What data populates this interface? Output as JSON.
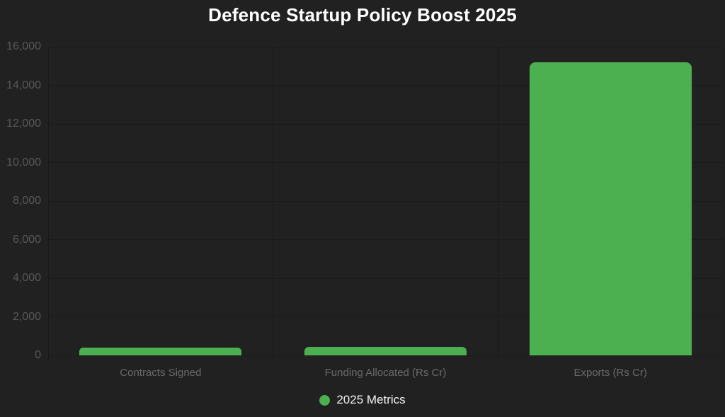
{
  "title": "Defence Startup Policy Boost 2025",
  "colors": {
    "background": "#212121",
    "bar": "#4caf50",
    "grid": "#1a1a1a",
    "axis_border": "#1a1a1a",
    "y_tick_label": "#58585b",
    "x_tick_label": "#6b6b6b",
    "title_text": "#ffffff",
    "legend_text": "#f2f2f2"
  },
  "legend": {
    "label": "2025 Metrics",
    "position": "bottom",
    "marker": "circle"
  },
  "chart_data": {
    "type": "bar",
    "title": "Defence Startup Policy Boost 2025",
    "categories": [
      "Contracts Signed",
      "Funding Allocated (Rs Cr)",
      "Exports (Rs Cr)"
    ],
    "series": [
      {
        "name": "2025 Metrics",
        "color": "#4caf50",
        "values": [
          400,
          450,
          15200
        ]
      }
    ],
    "xlabel": "",
    "ylabel": "",
    "ylim": [
      0,
      16000
    ],
    "ytick_step": 2000,
    "ytick_labels": [
      "0",
      "2,000",
      "4,000",
      "6,000",
      "8,000",
      "10,000",
      "12,000",
      "14,000",
      "16,000"
    ],
    "grid": true,
    "legend_position": "bottom",
    "bar_category_fraction": 0.72,
    "bar_border_radius": 8
  }
}
